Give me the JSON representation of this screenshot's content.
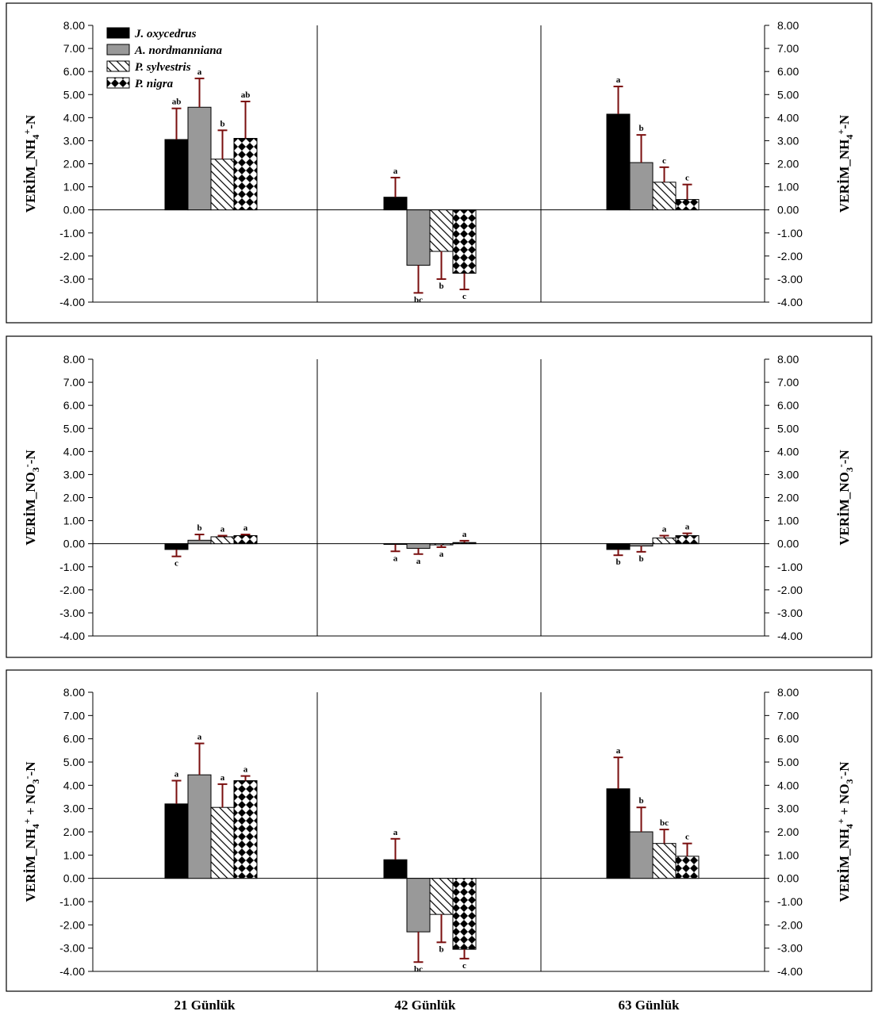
{
  "chart_data": [
    {
      "type": "bar",
      "ylabel": "VERİM_NH4+-N",
      "ylim": [
        -4,
        8
      ],
      "yticks": [
        "8.00",
        "7.00",
        "6.00",
        "5.00",
        "4.00",
        "3.00",
        "2.00",
        "1.00",
        "0.00",
        "-1.00",
        "-2.00",
        "-3.00",
        "-4.00"
      ],
      "categories": [
        "21 Günlük",
        "42 Günlük",
        "63 Günlük"
      ],
      "legend": "top-left",
      "series": [
        {
          "name": "J. oxycedrus",
          "values": [
            3.05,
            0.55,
            4.15
          ],
          "errors": [
            1.35,
            0.85,
            1.2
          ],
          "letters": [
            "ab",
            "a",
            "a"
          ]
        },
        {
          "name": "A. nordmanniana",
          "values": [
            4.45,
            -2.4,
            2.05
          ],
          "errors": [
            1.25,
            1.2,
            1.2
          ],
          "letters": [
            "a",
            "bc",
            "b"
          ]
        },
        {
          "name": "P. sylvestris",
          "values": [
            2.2,
            -1.8,
            1.2
          ],
          "errors": [
            1.25,
            1.2,
            0.65
          ],
          "letters": [
            "b",
            "b",
            "c"
          ]
        },
        {
          "name": "P. nigra",
          "values": [
            3.1,
            -2.75,
            0.45
          ],
          "errors": [
            1.6,
            0.7,
            0.65
          ],
          "letters": [
            "ab",
            "c",
            "c"
          ]
        }
      ]
    },
    {
      "type": "bar",
      "ylabel": "VERİM_NO3--N",
      "ylim": [
        -4,
        8
      ],
      "yticks": [
        "8.00",
        "7.00",
        "6.00",
        "5.00",
        "4.00",
        "3.00",
        "2.00",
        "1.00",
        "0.00",
        "-1.00",
        "-2.00",
        "-3.00",
        "-4.00"
      ],
      "categories": [
        "21 Günlük",
        "42 Günlük",
        "63 Günlük"
      ],
      "series": [
        {
          "name": "J. oxycedrus",
          "values": [
            -0.25,
            -0.03,
            -0.25
          ],
          "errors": [
            0.3,
            0.3,
            0.25
          ],
          "letters": [
            "c",
            "a",
            "b"
          ]
        },
        {
          "name": "A. nordmanniana",
          "values": [
            0.15,
            -0.2,
            -0.1
          ],
          "errors": [
            0.25,
            0.25,
            0.25
          ],
          "letters": [
            "b",
            "a",
            "b"
          ]
        },
        {
          "name": "P. sylvestris",
          "values": [
            0.3,
            -0.05,
            0.25
          ],
          "errors": [
            0.05,
            0.1,
            0.1
          ],
          "letters": [
            "a",
            "a",
            "a"
          ]
        },
        {
          "name": "P. nigra",
          "values": [
            0.35,
            0.05,
            0.35
          ],
          "errors": [
            0.05,
            0.08,
            0.1
          ],
          "letters": [
            "a",
            "a",
            "a"
          ]
        }
      ]
    },
    {
      "type": "bar",
      "ylabel": "VERİM_NH4+ + NO3--N",
      "ylim": [
        -4,
        8
      ],
      "yticks": [
        "8.00",
        "7.00",
        "6.00",
        "5.00",
        "4.00",
        "3.00",
        "2.00",
        "1.00",
        "0.00",
        "-1.00",
        "-2.00",
        "-3.00",
        "-4.00"
      ],
      "categories": [
        "21 Günlük",
        "42 Günlük",
        "63 Günlük"
      ],
      "series": [
        {
          "name": "J. oxycedrus",
          "values": [
            3.2,
            0.8,
            3.85
          ],
          "errors": [
            1.0,
            0.9,
            1.35
          ],
          "letters": [
            "a",
            "a",
            "a"
          ]
        },
        {
          "name": "A. nordmanniana",
          "values": [
            4.45,
            -2.3,
            2.0
          ],
          "errors": [
            1.35,
            1.3,
            1.05
          ],
          "letters": [
            "a",
            "bc",
            "b"
          ]
        },
        {
          "name": "P. sylvestris",
          "values": [
            3.05,
            -1.55,
            1.5
          ],
          "errors": [
            1.0,
            1.2,
            0.6
          ],
          "letters": [
            "a",
            "b",
            "bc"
          ]
        },
        {
          "name": "P. nigra",
          "values": [
            4.2,
            -3.05,
            0.95
          ],
          "errors": [
            0.2,
            0.4,
            0.55
          ],
          "letters": [
            "a",
            "c",
            "c"
          ]
        }
      ]
    }
  ],
  "categories": [
    "21 Günlük",
    "42 Günlük",
    "63 Günlük"
  ]
}
